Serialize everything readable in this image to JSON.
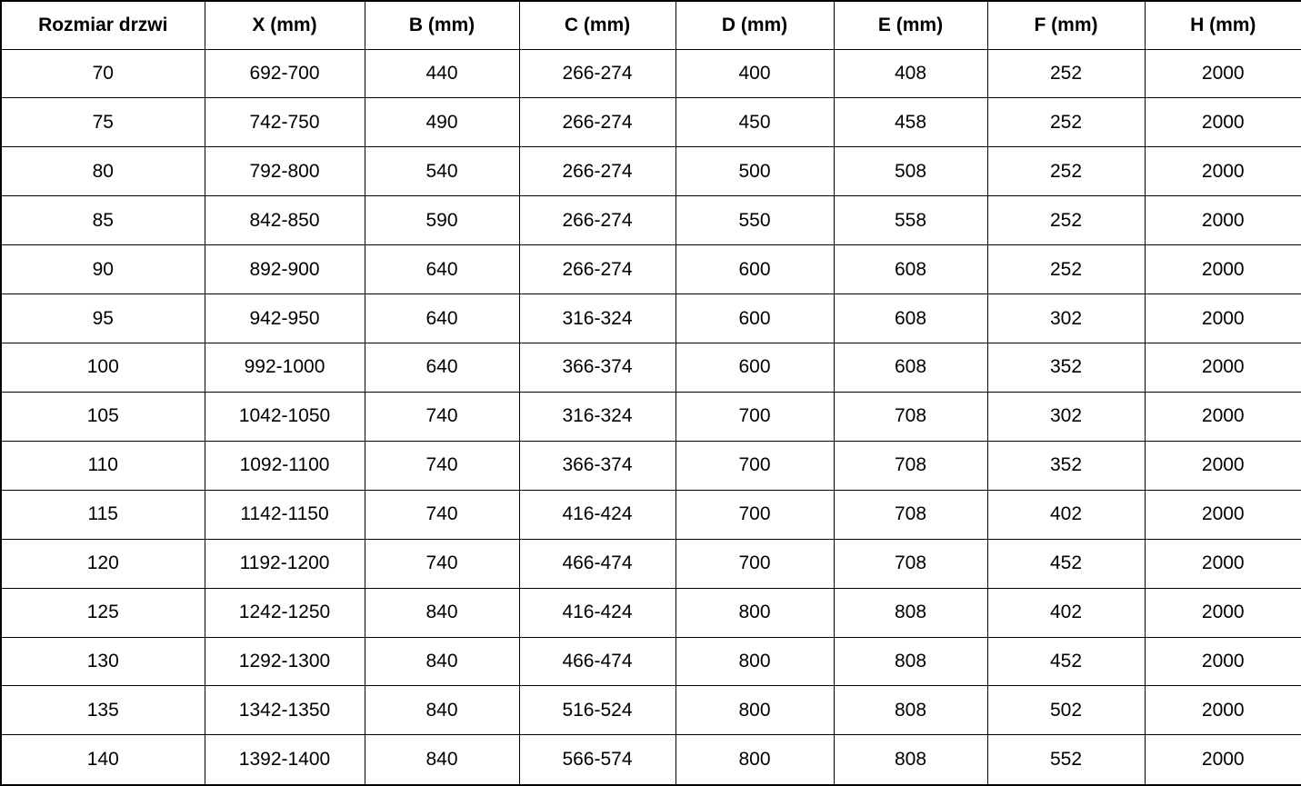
{
  "table": {
    "columns": [
      "Rozmiar drzwi",
      "X (mm)",
      "B (mm)",
      "C (mm)",
      "D (mm)",
      "E (mm)",
      "F (mm)",
      "H (mm)"
    ],
    "rows": [
      [
        "70",
        "692-700",
        "440",
        "266-274",
        "400",
        "408",
        "252",
        "2000"
      ],
      [
        "75",
        "742-750",
        "490",
        "266-274",
        "450",
        "458",
        "252",
        "2000"
      ],
      [
        "80",
        "792-800",
        "540",
        "266-274",
        "500",
        "508",
        "252",
        "2000"
      ],
      [
        "85",
        "842-850",
        "590",
        "266-274",
        "550",
        "558",
        "252",
        "2000"
      ],
      [
        "90",
        "892-900",
        "640",
        "266-274",
        "600",
        "608",
        "252",
        "2000"
      ],
      [
        "95",
        "942-950",
        "640",
        "316-324",
        "600",
        "608",
        "302",
        "2000"
      ],
      [
        "100",
        "992-1000",
        "640",
        "366-374",
        "600",
        "608",
        "352",
        "2000"
      ],
      [
        "105",
        "1042-1050",
        "740",
        "316-324",
        "700",
        "708",
        "302",
        "2000"
      ],
      [
        "110",
        "1092-1100",
        "740",
        "366-374",
        "700",
        "708",
        "352",
        "2000"
      ],
      [
        "115",
        "1142-1150",
        "740",
        "416-424",
        "700",
        "708",
        "402",
        "2000"
      ],
      [
        "120",
        "1192-1200",
        "740",
        "466-474",
        "700",
        "708",
        "452",
        "2000"
      ],
      [
        "125",
        "1242-1250",
        "840",
        "416-424",
        "800",
        "808",
        "402",
        "2000"
      ],
      [
        "130",
        "1292-1300",
        "840",
        "466-474",
        "800",
        "808",
        "452",
        "2000"
      ],
      [
        "135",
        "1342-1350",
        "840",
        "516-524",
        "800",
        "808",
        "502",
        "2000"
      ],
      [
        "140",
        "1392-1400",
        "840",
        "566-574",
        "800",
        "808",
        "552",
        "2000"
      ]
    ]
  },
  "chart_data": {
    "type": "table",
    "title": "",
    "columns": [
      "Rozmiar drzwi",
      "X (mm)",
      "B (mm)",
      "C (mm)",
      "D (mm)",
      "E (mm)",
      "F (mm)",
      "H (mm)"
    ],
    "rows": [
      [
        "70",
        "692-700",
        "440",
        "266-274",
        "400",
        "408",
        "252",
        "2000"
      ],
      [
        "75",
        "742-750",
        "490",
        "266-274",
        "450",
        "458",
        "252",
        "2000"
      ],
      [
        "80",
        "792-800",
        "540",
        "266-274",
        "500",
        "508",
        "252",
        "2000"
      ],
      [
        "85",
        "842-850",
        "590",
        "266-274",
        "550",
        "558",
        "252",
        "2000"
      ],
      [
        "90",
        "892-900",
        "640",
        "266-274",
        "600",
        "608",
        "252",
        "2000"
      ],
      [
        "95",
        "942-950",
        "640",
        "316-324",
        "600",
        "608",
        "302",
        "2000"
      ],
      [
        "100",
        "992-1000",
        "640",
        "366-374",
        "600",
        "608",
        "352",
        "2000"
      ],
      [
        "105",
        "1042-1050",
        "740",
        "316-324",
        "700",
        "708",
        "302",
        "2000"
      ],
      [
        "110",
        "1092-1100",
        "740",
        "366-374",
        "700",
        "708",
        "352",
        "2000"
      ],
      [
        "115",
        "1142-1150",
        "740",
        "416-424",
        "700",
        "708",
        "402",
        "2000"
      ],
      [
        "120",
        "1192-1200",
        "740",
        "466-474",
        "700",
        "708",
        "452",
        "2000"
      ],
      [
        "125",
        "1242-1250",
        "840",
        "416-424",
        "800",
        "808",
        "402",
        "2000"
      ],
      [
        "130",
        "1292-1300",
        "840",
        "466-474",
        "800",
        "808",
        "452",
        "2000"
      ],
      [
        "135",
        "1342-1350",
        "840",
        "516-524",
        "800",
        "808",
        "502",
        "2000"
      ],
      [
        "140",
        "1392-1400",
        "840",
        "566-574",
        "800",
        "808",
        "552",
        "2000"
      ]
    ]
  },
  "colors": {
    "border": "#000000",
    "text": "#000000",
    "background": "#ffffff"
  }
}
